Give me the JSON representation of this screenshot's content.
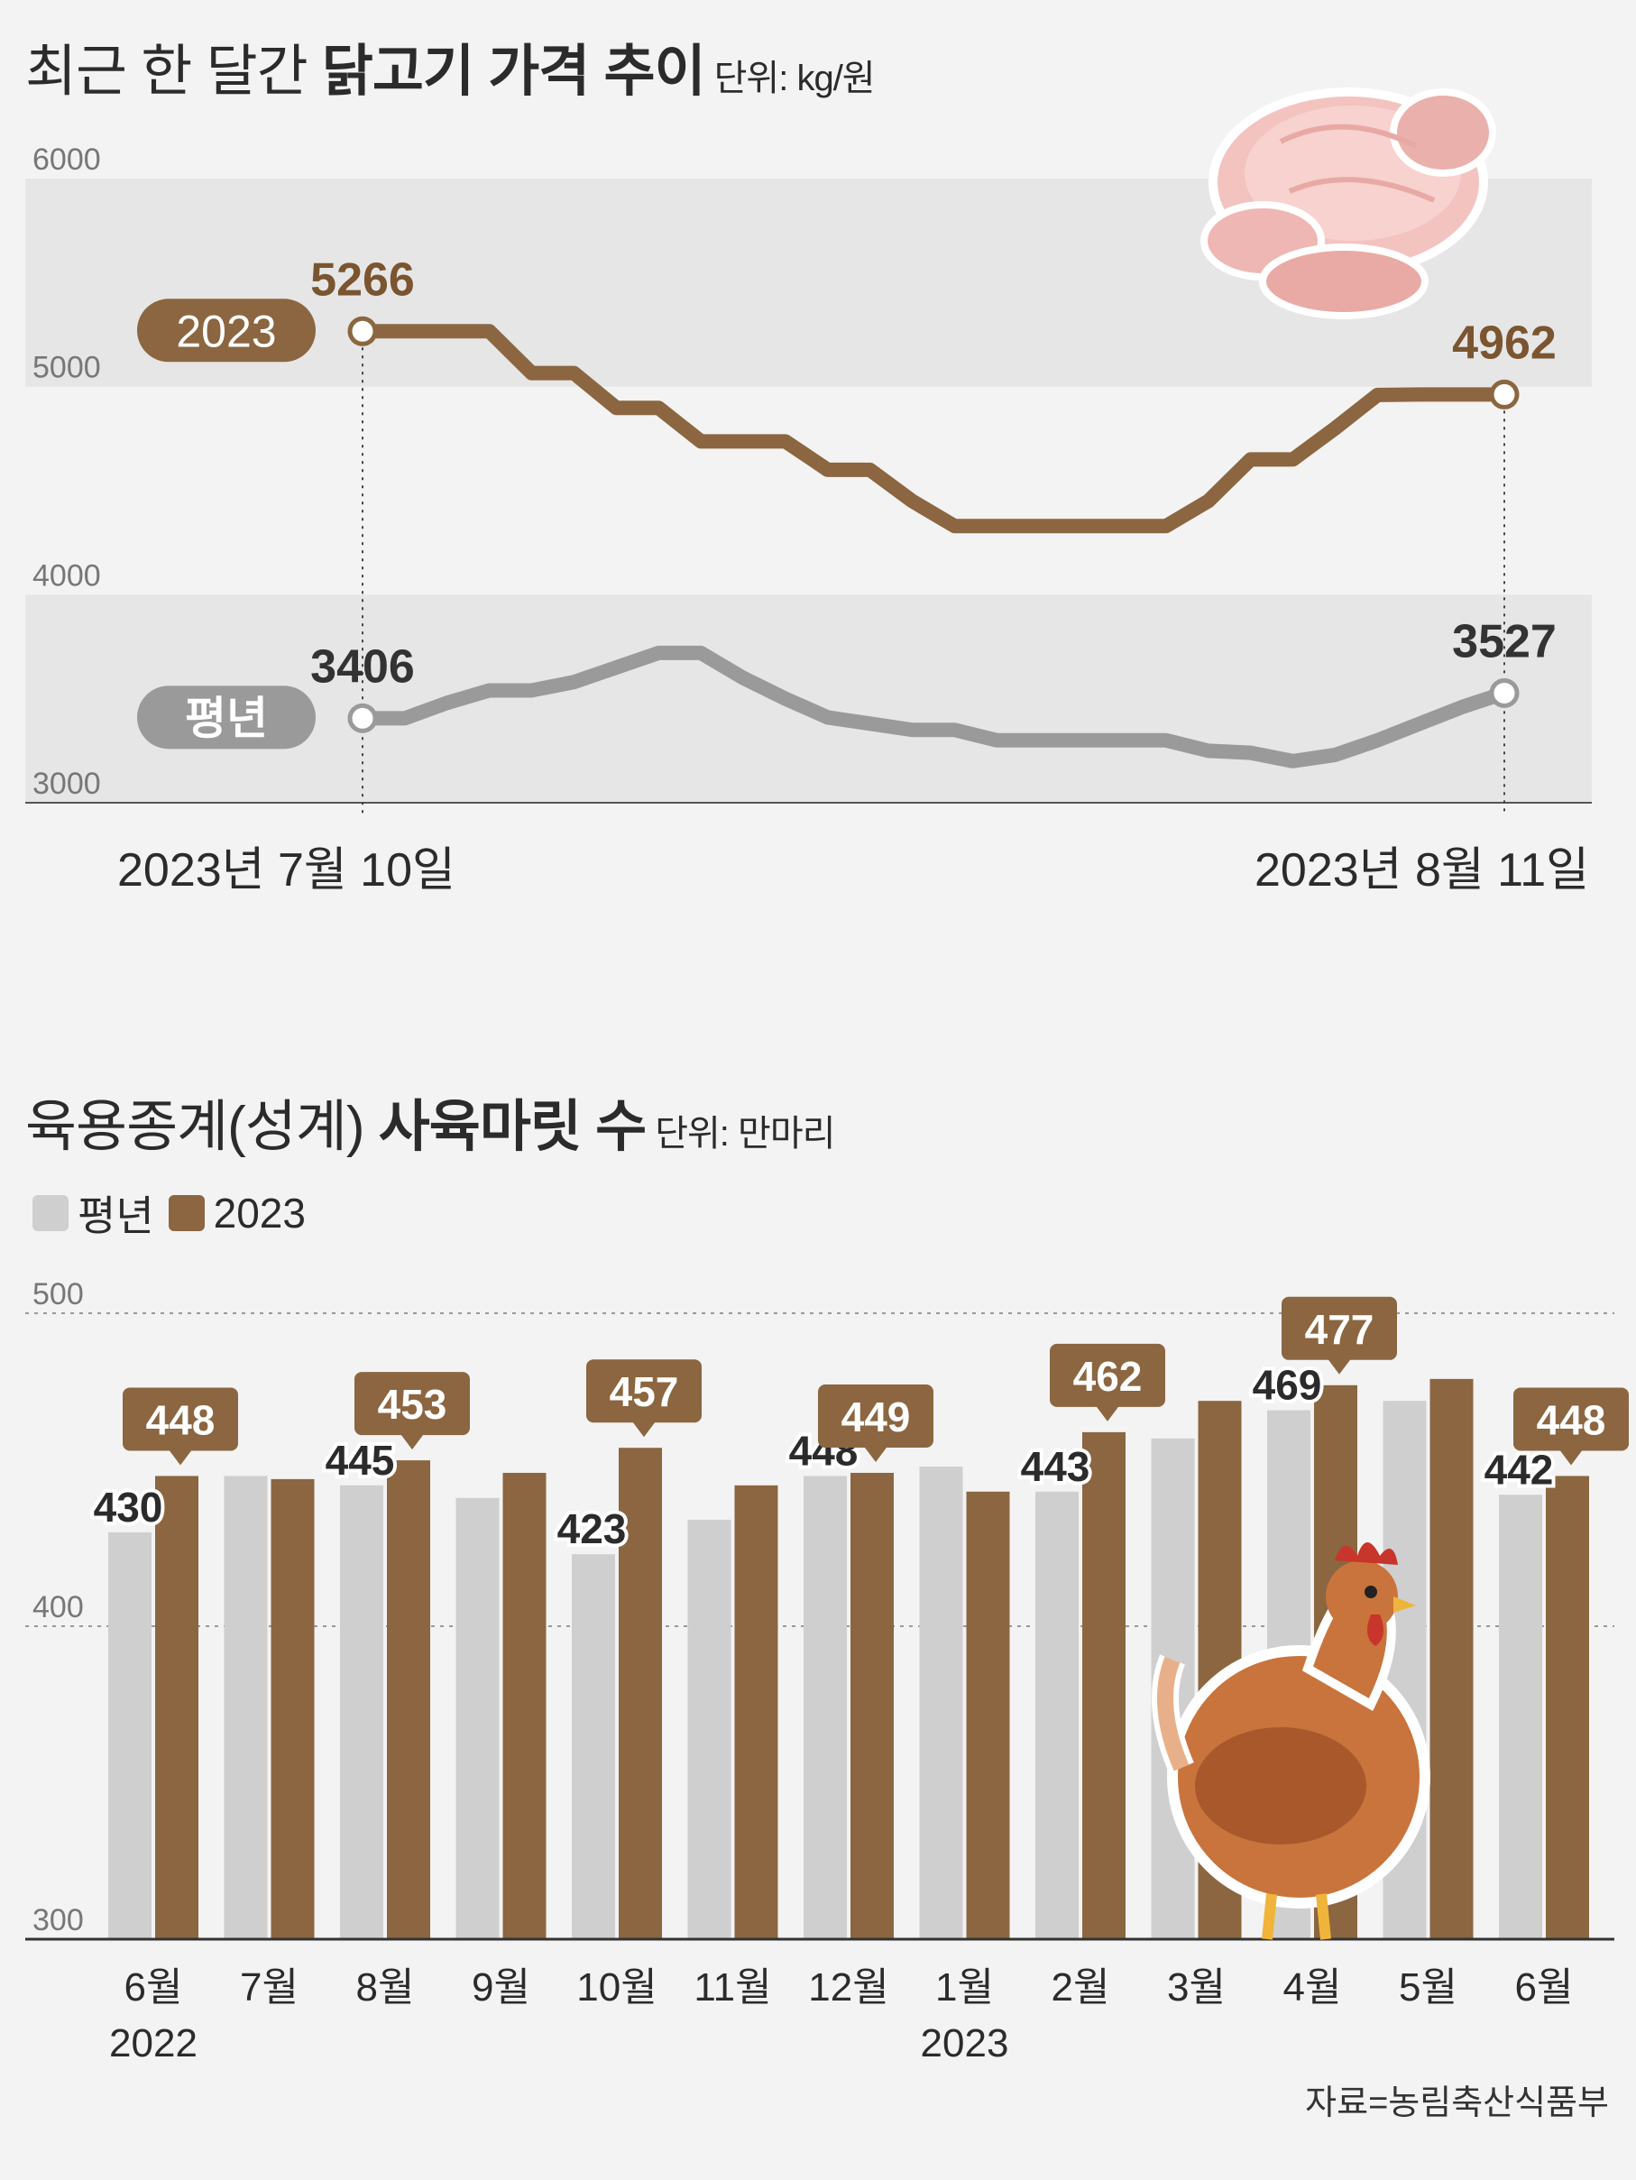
{
  "title1": {
    "regular": "최근 한 달간 ",
    "bold": "닭고기 가격 추이",
    "unit": "단위: kg/원"
  },
  "title2": {
    "regular": "육용종계(성계) ",
    "bold": "사육마릿 수",
    "unit": "단위: 만마리"
  },
  "legend": [
    {
      "label": "평년",
      "color": "#cfcfcf"
    },
    {
      "label": "2023",
      "color": "#8b6640"
    }
  ],
  "source": "자료=농림축산식품부",
  "colors": {
    "brown": "#8b6640",
    "gray": "#9a9a9a",
    "lightgray": "#cfcfcf",
    "band": "#e6e6e6"
  },
  "chart_data": [
    {
      "type": "line",
      "title": "최근 한 달간 닭고기 가격 추이",
      "unit": "단위: kg/원",
      "ylim": [
        3000,
        6000
      ],
      "yticks": [
        6000,
        5000,
        4000,
        3000
      ],
      "x_labels": [
        "2023년 7월 10일",
        "2023년 8월 11일"
      ],
      "series": [
        {
          "name": "2023",
          "color": "#8b6640",
          "values": [
            5266,
            5266,
            5266,
            5266,
            5065,
            5065,
            4898,
            4898,
            4737,
            4737,
            4737,
            4600,
            4600,
            4450,
            4330,
            4330,
            4330,
            4330,
            4330,
            4330,
            4450,
            4650,
            4650,
            4800,
            4960,
            4962,
            4962,
            4962
          ],
          "start_label": "5266",
          "end_label": "4962"
        },
        {
          "name": "평년",
          "color": "#9a9a9a",
          "values": [
            3406,
            3406,
            3480,
            3540,
            3540,
            3580,
            3650,
            3720,
            3720,
            3600,
            3500,
            3410,
            3380,
            3350,
            3350,
            3300,
            3300,
            3300,
            3300,
            3300,
            3250,
            3240,
            3200,
            3230,
            3300,
            3380,
            3460,
            3527
          ],
          "start_label": "3406",
          "end_label": "3527"
        }
      ]
    },
    {
      "type": "bar",
      "title": "육용종계(성계) 사육마릿 수",
      "unit": "단위: 만마리",
      "ylim": [
        300,
        500
      ],
      "yticks": [
        500,
        400,
        300
      ],
      "categories": [
        "6월",
        "7월",
        "8월",
        "9월",
        "10월",
        "11월",
        "12월",
        "1월",
        "2월",
        "3월",
        "4월",
        "5월",
        "6월"
      ],
      "year_labels": [
        "2022",
        "",
        "",
        "",
        "",
        "",
        "",
        "2023",
        "",
        "",
        "",
        "",
        ""
      ],
      "series": [
        {
          "name": "평년",
          "color": "#cfcfcf",
          "values": [
            430,
            448,
            445,
            441,
            423,
            434,
            448,
            451,
            443,
            460,
            469,
            472,
            442
          ]
        },
        {
          "name": "2023",
          "color": "#8b6640",
          "values": [
            448,
            447,
            453,
            449,
            457,
            445,
            449,
            443,
            462,
            472,
            477,
            479,
            448
          ]
        }
      ],
      "labels_avg": [
        "430",
        "",
        "445",
        "",
        "423",
        "",
        "448",
        "",
        "443",
        "",
        "469",
        "",
        "442"
      ],
      "labels_2023": [
        "448",
        "",
        "453",
        "",
        "457",
        "",
        "449",
        "",
        "462",
        "",
        "477",
        "",
        "448"
      ]
    }
  ]
}
